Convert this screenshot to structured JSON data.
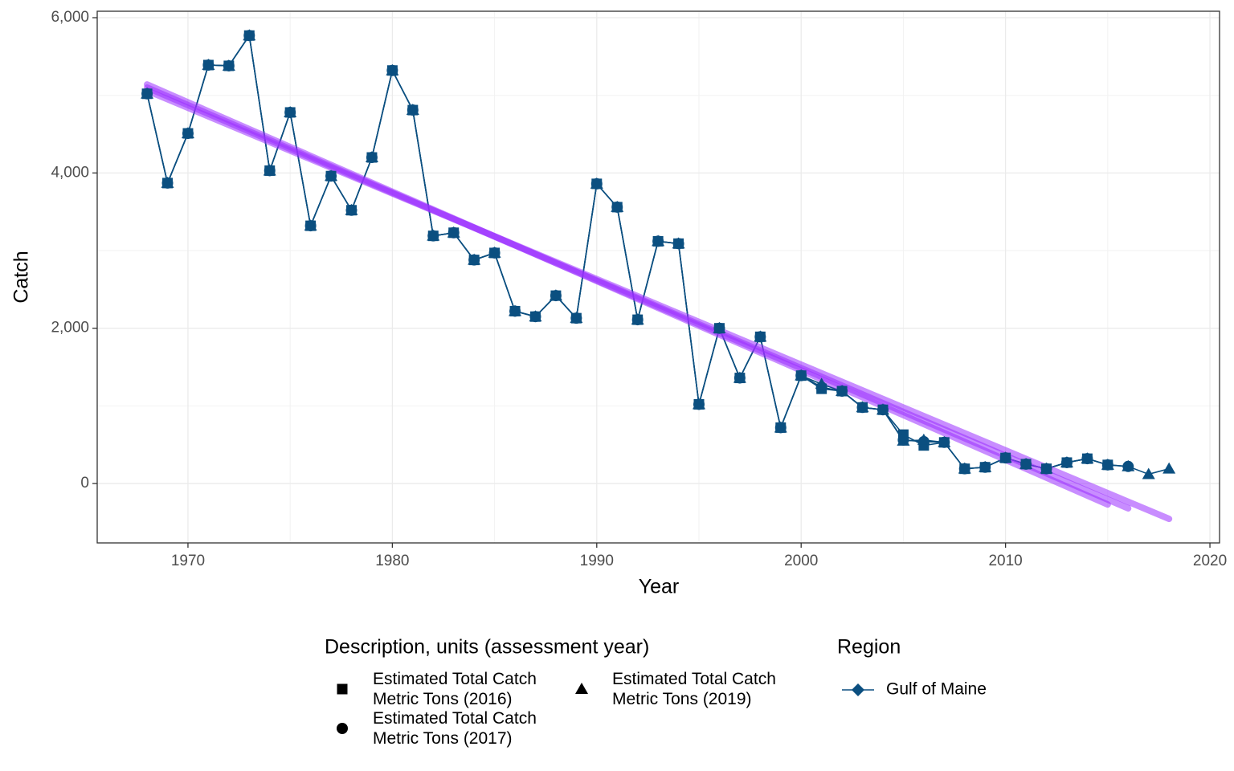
{
  "chart_data": {
    "type": "line",
    "xlabel": "Year",
    "ylabel": "Catch",
    "xlim": [
      1965.56,
      2020.47
    ],
    "ylim": [
      -765,
      6083
    ],
    "xticks": [
      1970,
      1980,
      1990,
      2000,
      2010,
      2020
    ],
    "yticks": [
      0,
      {
        "value": 2000,
        "label": "2,000"
      },
      {
        "value": 4000,
        "label": "4,000"
      },
      {
        "value": 6000,
        "label": "6,000"
      }
    ],
    "grid": true,
    "color": "#0b4f80",
    "shape_legend_title": "Description, units (assessment year)",
    "region_legend_title": "Region",
    "region": "Gulf of Maine",
    "series": [
      {
        "name": "Estimated Total Catch\nMetric Tons (2016)",
        "shape": "square",
        "color": "#0b4f80",
        "x": [
          1968,
          1969,
          1970,
          1971,
          1972,
          1973,
          1974,
          1975,
          1976,
          1977,
          1978,
          1979,
          1980,
          1981,
          1982,
          1983,
          1984,
          1985,
          1986,
          1987,
          1988,
          1989,
          1990,
          1991,
          1992,
          1993,
          1994,
          1995,
          1996,
          1997,
          1998,
          1999,
          2000,
          2001,
          2002,
          2003,
          2004,
          2005,
          2006,
          2007,
          2008,
          2009,
          2010,
          2011,
          2012,
          2013,
          2014,
          2015
        ],
        "values": [
          5020,
          3870,
          4510,
          5390,
          5380,
          5770,
          4030,
          4780,
          3320,
          3960,
          3520,
          4200,
          5320,
          4810,
          3190,
          3230,
          2880,
          2970,
          2220,
          2150,
          2420,
          2130,
          3860,
          3560,
          2110,
          3120,
          3090,
          1020,
          2000,
          1360,
          1890,
          720,
          1390,
          1220,
          1190,
          980,
          950,
          630,
          490,
          530,
          190,
          210,
          330,
          250,
          190,
          270,
          320,
          240
        ]
      },
      {
        "name": "Estimated Total Catch\nMetric Tons (2017)",
        "shape": "circle",
        "color": "#0b4f80",
        "x": [
          1968,
          1969,
          1970,
          1971,
          1972,
          1973,
          1974,
          1975,
          1976,
          1977,
          1978,
          1979,
          1980,
          1981,
          1982,
          1983,
          1984,
          1985,
          1986,
          1987,
          1988,
          1989,
          1990,
          1991,
          1992,
          1993,
          1994,
          1995,
          1996,
          1997,
          1998,
          1999,
          2000,
          2001,
          2002,
          2003,
          2004,
          2005,
          2006,
          2007,
          2008,
          2009,
          2010,
          2011,
          2012,
          2013,
          2014,
          2015,
          2016
        ],
        "values": [
          5020,
          3870,
          4510,
          5390,
          5380,
          5770,
          4030,
          4780,
          3320,
          3960,
          3520,
          4200,
          5320,
          4810,
          3190,
          3230,
          2880,
          2970,
          2220,
          2150,
          2420,
          2130,
          3860,
          3560,
          2110,
          3120,
          3090,
          1020,
          2000,
          1360,
          1890,
          720,
          1390,
          1240,
          1190,
          980,
          950,
          560,
          540,
          530,
          190,
          210,
          330,
          250,
          190,
          270,
          320,
          240,
          220
        ]
      },
      {
        "name": "Estimated Total Catch\nMetric Tons (2019)",
        "shape": "triangle",
        "color": "#0b4f80",
        "x": [
          1968,
          1969,
          1970,
          1971,
          1972,
          1973,
          1974,
          1975,
          1976,
          1977,
          1978,
          1979,
          1980,
          1981,
          1982,
          1983,
          1984,
          1985,
          1986,
          1987,
          1988,
          1989,
          1990,
          1991,
          1992,
          1993,
          1994,
          1995,
          1996,
          1997,
          1998,
          1999,
          2000,
          2001,
          2002,
          2003,
          2004,
          2005,
          2006,
          2007,
          2008,
          2009,
          2010,
          2011,
          2012,
          2013,
          2014,
          2015,
          2016,
          2017,
          2018
        ],
        "values": [
          5020,
          3870,
          4510,
          5390,
          5380,
          5770,
          4030,
          4780,
          3320,
          3960,
          3520,
          4200,
          5320,
          4810,
          3190,
          3230,
          2880,
          2970,
          2220,
          2150,
          2420,
          2130,
          3860,
          3560,
          2110,
          3120,
          3090,
          1020,
          2000,
          1360,
          1890,
          720,
          1390,
          1280,
          1190,
          980,
          950,
          550,
          560,
          530,
          190,
          210,
          330,
          250,
          190,
          270,
          320,
          240,
          220,
          120,
          190
        ]
      }
    ],
    "trend_lines": [
      {
        "color": "#9b30ff",
        "x": [
          1968,
          2015
        ],
        "values": [
          5140,
          -270
        ]
      },
      {
        "color": "#9b30ff",
        "x": [
          1968,
          2016
        ],
        "values": [
          5100,
          -320
        ]
      },
      {
        "color": "#9b30ff",
        "x": [
          1968,
          2018
        ],
        "values": [
          5060,
          -455
        ]
      }
    ]
  }
}
